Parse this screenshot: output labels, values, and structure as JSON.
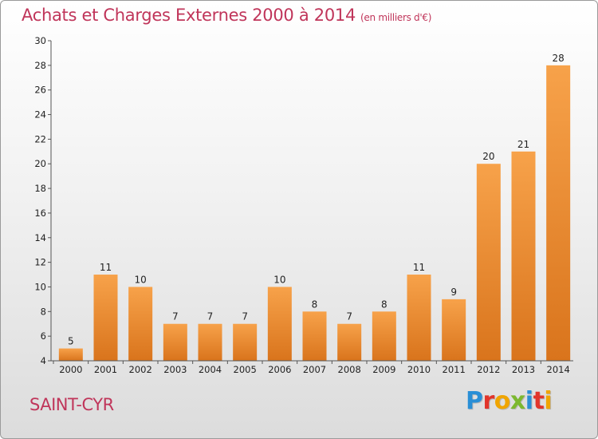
{
  "header": {
    "title": "Achats et Charges Externes 2000 à 2014",
    "unit": "(en milliers d'€)"
  },
  "footer": {
    "place": "SAINT-CYR",
    "logo_text": "Proxiti",
    "logo_colors": [
      "#2a8fd6",
      "#e1352b",
      "#f0a500",
      "#7cb82f",
      "#2a8fd6",
      "#e1352b",
      "#f0a500"
    ]
  },
  "chart_data": {
    "type": "bar",
    "categories": [
      "2000",
      "2001",
      "2002",
      "2003",
      "2004",
      "2005",
      "2006",
      "2007",
      "2008",
      "2009",
      "2010",
      "2011",
      "2012",
      "2013",
      "2014"
    ],
    "values": [
      5,
      11,
      10,
      7,
      7,
      7,
      10,
      8,
      7,
      8,
      11,
      9,
      20,
      21,
      28
    ],
    "title": "Achats et Charges Externes 2000 à 2014",
    "ylim": [
      4,
      30
    ],
    "yticks": [
      4,
      6,
      8,
      10,
      12,
      14,
      16,
      18,
      20,
      22,
      24,
      26,
      28,
      30
    ],
    "grid": false,
    "bar_color_top": "#f7a24a",
    "bar_color_bottom": "#d9741c"
  }
}
